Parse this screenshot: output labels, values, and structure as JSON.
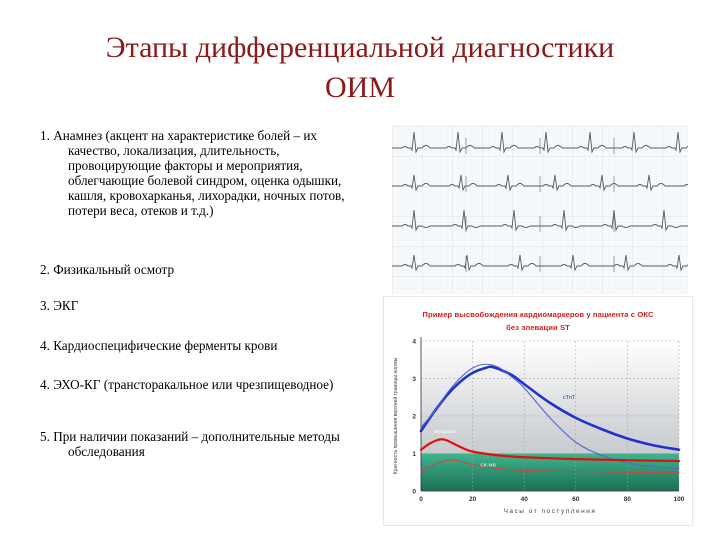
{
  "title": {
    "line1": "Этапы дифференциальной диагностики",
    "line2": "ОИМ"
  },
  "items": [
    {
      "text": "1. Анамнез (акцент на характеристике болей – их качество, локализация, длительность, провоцирующие факторы и мероприятия, облегчающие болевой синдром, оценка одышки, кашля, кровохарканья, лихорадки, ночных потов, потери веса, отеков и т.д.)"
    },
    {
      "text": "2. Физикальный осмотр"
    },
    {
      "text": "3. ЭКГ"
    },
    {
      "text": "4. Кардиоспецифические ферменты крови"
    },
    {
      "text": "4. ЭХО-КГ (трансторакальное или чрезпищеводное)"
    },
    {
      "text": "5. При наличии показаний – дополнительные методы обследования"
    }
  ],
  "ecg_image": {
    "icon": "ecg-strip-image"
  },
  "colors": {
    "title": "#8b1a1a",
    "chart_title": "#d12020",
    "series_ctni": "#2233c8",
    "series_ctnt": "#5566cc",
    "series_myoglobin": "#e01010",
    "series_ckmb": "#d84040",
    "band_green": "#2e9e7a",
    "band_grey": "#d9dcde"
  },
  "chart_data": {
    "type": "line",
    "title": "Пример высвобождения кардиомаркеров у пациента с ОКС без элевации ST",
    "title_lines": [
      "Пример высвобождения кардиомаркеров у пациента с ОКС",
      "без элевации ST"
    ],
    "xlabel": "Часы от поступления",
    "ylabel": "Кратность превышения верхней границы нормы",
    "xlim": [
      0,
      100
    ],
    "ylim": [
      0,
      4
    ],
    "x_ticks": [
      0,
      20,
      40,
      60,
      80,
      100
    ],
    "y_ticks": [
      0,
      1,
      2,
      3,
      4
    ],
    "grid": true,
    "legend": "inline labels",
    "series": [
      {
        "name": "cTnI",
        "x": [
          0,
          5,
          10,
          15,
          20,
          25,
          28,
          35,
          40,
          50,
          60,
          70,
          80,
          90,
          100
        ],
        "y": [
          1.6,
          2.1,
          2.55,
          2.9,
          3.15,
          3.28,
          3.3,
          3.1,
          2.85,
          2.35,
          1.95,
          1.65,
          1.4,
          1.22,
          1.1
        ]
      },
      {
        "name": "cTnT",
        "x": [
          0,
          5,
          10,
          15,
          20,
          25,
          30,
          35,
          40,
          50,
          60,
          70,
          80,
          90,
          100
        ],
        "y": [
          1.7,
          2.1,
          2.6,
          3.0,
          3.28,
          3.38,
          3.3,
          3.05,
          2.75,
          1.95,
          1.3,
          0.95,
          0.75,
          0.65,
          0.6
        ]
      },
      {
        "name": "Myoglobin",
        "x": [
          0,
          3,
          6,
          8,
          10,
          13,
          16,
          20,
          30,
          40,
          60,
          80,
          100
        ],
        "y": [
          1.1,
          1.25,
          1.35,
          1.38,
          1.35,
          1.25,
          1.15,
          1.05,
          0.95,
          0.9,
          0.85,
          0.82,
          0.8
        ]
      },
      {
        "name": "CK-MB",
        "x": [
          0,
          5,
          10,
          15,
          20,
          30,
          40,
          60,
          80,
          100
        ],
        "y": [
          0.55,
          0.7,
          0.82,
          0.8,
          0.7,
          0.6,
          0.55,
          0.52,
          0.5,
          0.5
        ]
      }
    ]
  }
}
